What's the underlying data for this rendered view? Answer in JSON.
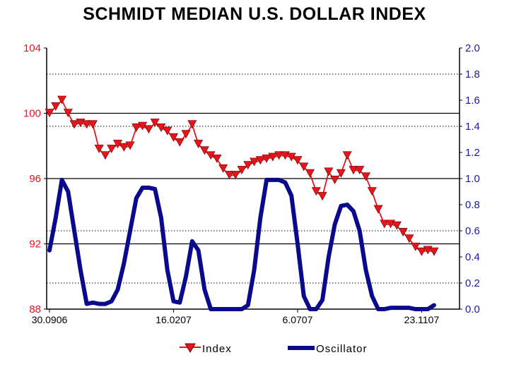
{
  "colors": {
    "index_line": "#e8141c",
    "index_marker": "#e8141c",
    "oscillator_line": "#0a0a8c",
    "left_axis_text": "#e8141c",
    "right_axis_text": "#1a1aa8"
  },
  "chart_data": {
    "type": "line",
    "title": "SCHMIDT MEDIAN U.S. DOLLAR INDEX",
    "x_tick_labels": [
      "30.0906",
      "16.0207",
      "6.0707",
      "23.1107"
    ],
    "x_tick_positions": [
      0,
      20,
      40,
      60
    ],
    "x_count": 63,
    "left_axis": {
      "ylim": [
        88,
        104
      ],
      "ticks": [
        "88",
        "92",
        "96",
        "100",
        "104"
      ],
      "tick_values": [
        88,
        92,
        96,
        100,
        104
      ]
    },
    "right_axis": {
      "ylim": [
        0,
        2
      ],
      "ticks": [
        "0.0",
        "0.2",
        "0.4",
        "0.6",
        "0.8",
        "1.0",
        "1.2",
        "1.4",
        "1.6",
        "1.8",
        "2.0"
      ],
      "tick_values": [
        0,
        0.2,
        0.4,
        0.6,
        0.8,
        1.0,
        1.2,
        1.4,
        1.6,
        1.8,
        2.0
      ]
    },
    "grid": {
      "solid_left_values": [
        92,
        96,
        100
      ],
      "dotted_right_values": [
        0.2,
        0.6,
        1.4,
        1.8
      ]
    },
    "legend_position": "bottom",
    "series": [
      {
        "name": "Index",
        "axis": "left",
        "marker": "triangle-down",
        "values": [
          100,
          100.4,
          100.8,
          100,
          99.3,
          99.4,
          99.3,
          99.3,
          97.8,
          97.4,
          97.8,
          98.1,
          97.9,
          98,
          99.1,
          99.2,
          99,
          99.4,
          99.1,
          98.9,
          98.5,
          98.2,
          98.7,
          99.3,
          98.1,
          97.7,
          97.4,
          97.2,
          96.6,
          96.2,
          96.2,
          96.5,
          96.8,
          97,
          97.1,
          97.2,
          97.3,
          97.4,
          97.4,
          97.3,
          97.1,
          96.7,
          96.3,
          95.2,
          94.9,
          96.4,
          95.9,
          96.3,
          97.4,
          96.5,
          96.5,
          96.1,
          95.2,
          94.1,
          93.2,
          93.2,
          93.1,
          92.7,
          92.3,
          91.8,
          91.5,
          91.6,
          91.5
        ]
      },
      {
        "name": "Oscillator",
        "axis": "right",
        "values": [
          0.45,
          0.7,
          0.99,
          0.9,
          0.6,
          0.3,
          0.04,
          0.05,
          0.04,
          0.04,
          0.06,
          0.15,
          0.35,
          0.6,
          0.85,
          0.93,
          0.93,
          0.92,
          0.7,
          0.3,
          0.06,
          0.05,
          0.25,
          0.52,
          0.45,
          0.15,
          0,
          0,
          0,
          0,
          0,
          0,
          0.03,
          0.3,
          0.7,
          0.99,
          0.99,
          0.99,
          0.97,
          0.87,
          0.5,
          0.1,
          0,
          0,
          0.07,
          0.4,
          0.65,
          0.79,
          0.8,
          0.75,
          0.6,
          0.3,
          0.1,
          0,
          0,
          0.01,
          0.01,
          0.01,
          0.01,
          0,
          0,
          0,
          0.03
        ]
      }
    ]
  }
}
